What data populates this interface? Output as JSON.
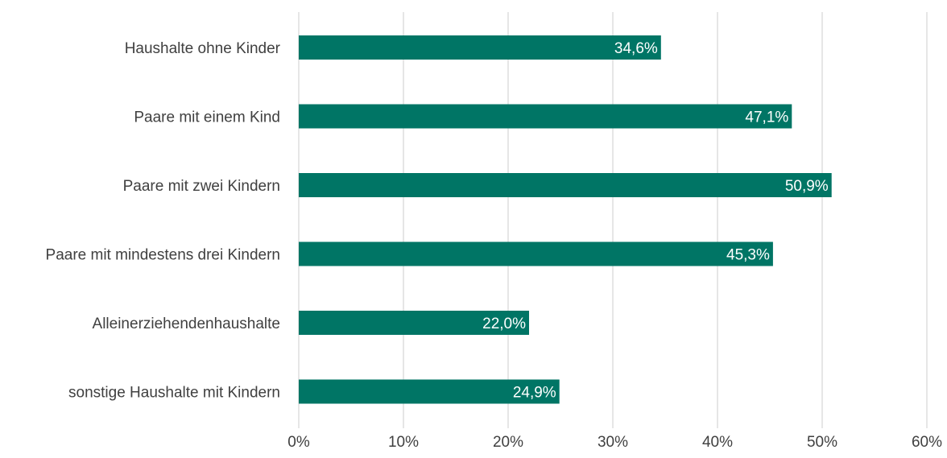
{
  "chart_data": {
    "type": "bar",
    "orientation": "horizontal",
    "categories": [
      "Haushalte ohne Kinder",
      "Paare mit einem Kind",
      "Paare mit zwei Kindern",
      "Paare mit mindestens drei Kindern",
      "Alleinerziehendenhaushalte",
      "sonstige Haushalte mit Kindern"
    ],
    "values": [
      34.6,
      47.1,
      50.9,
      45.3,
      22.0,
      24.9
    ],
    "data_labels": [
      "34,6%",
      "47,1%",
      "50,9%",
      "45,3%",
      "22,0%",
      "24,9%"
    ],
    "xlim": [
      0,
      60
    ],
    "x_ticks": [
      0,
      10,
      20,
      30,
      40,
      50,
      60
    ],
    "x_tick_labels": [
      "0%",
      "10%",
      "20%",
      "30%",
      "40%",
      "50%",
      "60%"
    ],
    "title": "",
    "xlabel": "",
    "ylabel": "",
    "grid": "vertical",
    "legend": "none",
    "bar_color": "#007565",
    "grid_color": "#d9d9d9",
    "text_color": "#404040",
    "label_color": "#ffffff"
  }
}
